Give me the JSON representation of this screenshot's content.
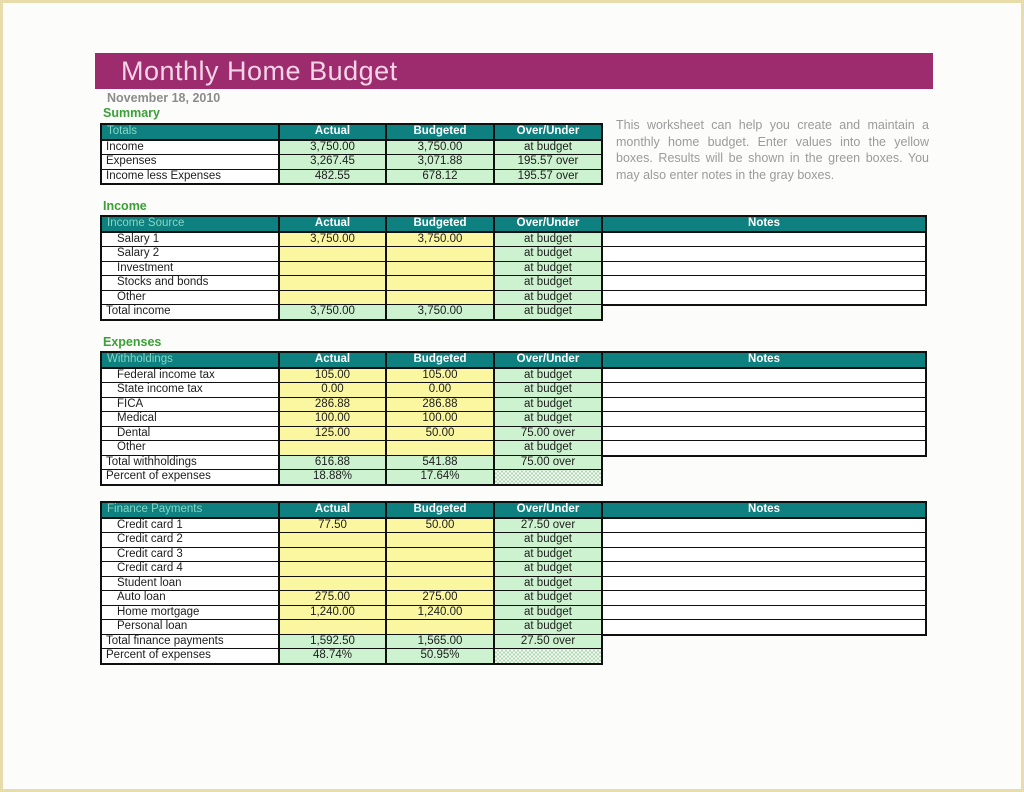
{
  "page": {
    "title": "Monthly Home Budget",
    "date": "November 18, 2010"
  },
  "columns": {
    "actual": "Actual",
    "budgeted": "Budgeted",
    "over_under": "Over/Under",
    "notes": "Notes"
  },
  "colors": {
    "accent_magenta": "#9c2c6e",
    "header_teal": "#0e8080",
    "input_yellow": "#fbf7a0",
    "result_green": "#cdf2cf",
    "notes_gray": "#b9b9b9",
    "section_label_green": "#3aa136"
  },
  "summary": {
    "section_label": "Summary",
    "header_label": "Totals",
    "help_text": "This worksheet can help you create and maintain a monthly home budget. Enter values into the yellow boxes. Results will be shown in the green boxes. You may also enter notes in the gray boxes.",
    "rows": [
      {
        "type": "summary",
        "label": "Income",
        "actual": "3,750.00",
        "budgeted": "3,750.00",
        "over_under": "at budget"
      },
      {
        "type": "summary",
        "label": "Expenses",
        "actual": "3,267.45",
        "budgeted": "3,071.88",
        "over_under": "195.57 over"
      },
      {
        "type": "summary",
        "label": "Income less Expenses",
        "actual": "482.55",
        "budgeted": "678.12",
        "over_under": "195.57 over"
      }
    ]
  },
  "income": {
    "section_label": "Income",
    "header_label": "Income Source",
    "rows": [
      {
        "type": "data",
        "label": "Salary 1",
        "actual": "3,750.00",
        "budgeted": "3,750.00",
        "over_under": "at budget",
        "notes": ""
      },
      {
        "type": "data",
        "label": "Salary 2",
        "actual": "",
        "budgeted": "",
        "over_under": "at budget",
        "notes": ""
      },
      {
        "type": "data",
        "label": "Investment",
        "actual": "",
        "budgeted": "",
        "over_under": "at budget",
        "notes": ""
      },
      {
        "type": "data",
        "label": "Stocks and bonds",
        "actual": "",
        "budgeted": "",
        "over_under": "at budget",
        "notes": ""
      },
      {
        "type": "data",
        "label": "Other",
        "actual": "",
        "budgeted": "",
        "over_under": "at budget",
        "notes": ""
      },
      {
        "type": "total",
        "label": "Total income",
        "actual": "3,750.00",
        "budgeted": "3,750.00",
        "over_under": "at budget"
      }
    ]
  },
  "withholdings": {
    "section_label": "Expenses",
    "header_label": "Withholdings",
    "rows": [
      {
        "type": "data",
        "label": "Federal income tax",
        "actual": "105.00",
        "budgeted": "105.00",
        "over_under": "at budget",
        "notes": ""
      },
      {
        "type": "data",
        "label": "State income tax",
        "actual": "0.00",
        "budgeted": "0.00",
        "over_under": "at budget",
        "notes": ""
      },
      {
        "type": "data",
        "label": "FICA",
        "actual": "286.88",
        "budgeted": "286.88",
        "over_under": "at budget",
        "notes": ""
      },
      {
        "type": "data",
        "label": "Medical",
        "actual": "100.00",
        "budgeted": "100.00",
        "over_under": "at budget",
        "notes": ""
      },
      {
        "type": "data",
        "label": "Dental",
        "actual": "125.00",
        "budgeted": "50.00",
        "over_under": "75.00 over",
        "notes": ""
      },
      {
        "type": "data",
        "label": "Other",
        "actual": "",
        "budgeted": "",
        "over_under": "at budget",
        "notes": ""
      },
      {
        "type": "total",
        "label": "Total withholdings",
        "actual": "616.88",
        "budgeted": "541.88",
        "over_under": "75.00 over"
      },
      {
        "type": "percent",
        "label": "Percent of expenses",
        "actual": "18.88%",
        "budgeted": "17.64%",
        "over_under": ""
      }
    ]
  },
  "finance": {
    "header_label": "Finance Payments",
    "rows": [
      {
        "type": "data",
        "label": "Credit card 1",
        "actual": "77.50",
        "budgeted": "50.00",
        "over_under": "27.50 over",
        "notes": ""
      },
      {
        "type": "data",
        "label": "Credit card 2",
        "actual": "",
        "budgeted": "",
        "over_under": "at budget",
        "notes": ""
      },
      {
        "type": "data",
        "label": "Credit card 3",
        "actual": "",
        "budgeted": "",
        "over_under": "at budget",
        "notes": ""
      },
      {
        "type": "data",
        "label": "Credit card 4",
        "actual": "",
        "budgeted": "",
        "over_under": "at budget",
        "notes": ""
      },
      {
        "type": "data",
        "label": "Student loan",
        "actual": "",
        "budgeted": "",
        "over_under": "at budget",
        "notes": ""
      },
      {
        "type": "data",
        "label": "Auto loan",
        "actual": "275.00",
        "budgeted": "275.00",
        "over_under": "at budget",
        "notes": ""
      },
      {
        "type": "data",
        "label": "Home mortgage",
        "actual": "1,240.00",
        "budgeted": "1,240.00",
        "over_under": "at budget",
        "notes": ""
      },
      {
        "type": "data",
        "label": "Personal loan",
        "actual": "",
        "budgeted": "",
        "over_under": "at budget",
        "notes": ""
      },
      {
        "type": "total",
        "label": "Total finance payments",
        "actual": "1,592.50",
        "budgeted": "1,565.00",
        "over_under": "27.50 over"
      },
      {
        "type": "percent",
        "label": "Percent of expenses",
        "actual": "48.74%",
        "budgeted": "50.95%",
        "over_under": ""
      }
    ]
  }
}
